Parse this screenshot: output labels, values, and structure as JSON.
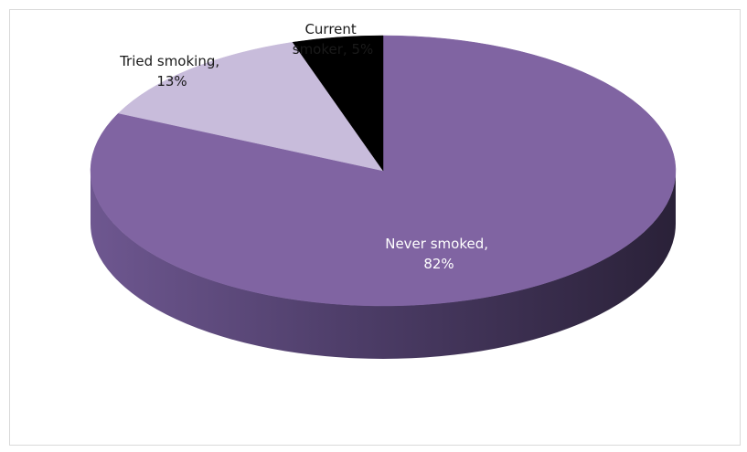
{
  "chart_data": {
    "type": "pie",
    "style": "3d",
    "slices": [
      {
        "category": "Never smoked",
        "value": 82,
        "label_line1": "Never smoked,",
        "label_line2": "82%",
        "color": "#8064a2",
        "label_color": "#ffffff"
      },
      {
        "category": "Tried smoking",
        "value": 13,
        "label_line1": "Tried smoking,",
        "label_line2": "13%",
        "color": "#c8bcdb",
        "label_color": "#1a1a1a"
      },
      {
        "category": "Current smoker",
        "value": 5,
        "label_line1": "Current",
        "label_line2": "smoker, 5%",
        "color": "#000000",
        "label_color": "#1a1a1a"
      }
    ],
    "legend": "none"
  }
}
